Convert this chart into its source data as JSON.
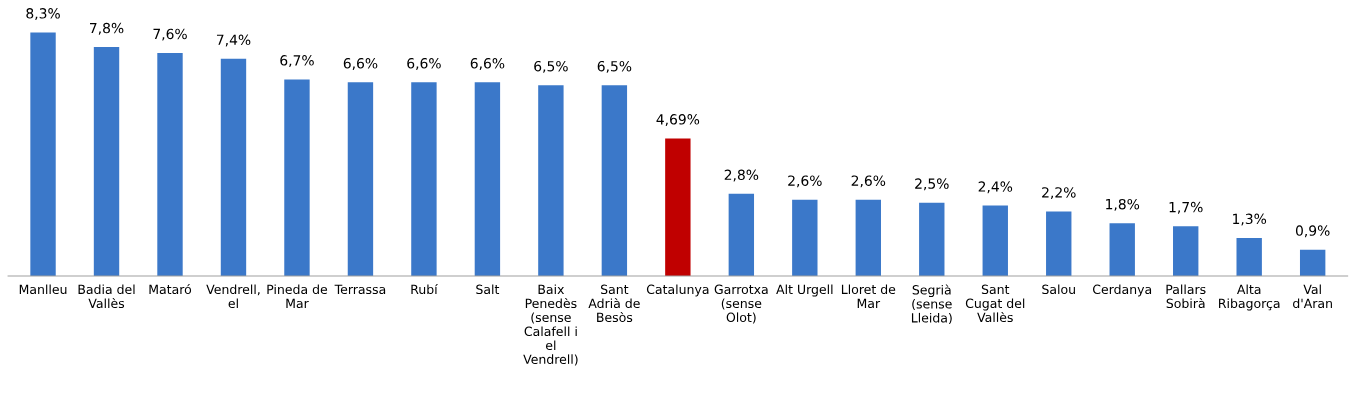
{
  "chart_data": {
    "type": "bar",
    "categories": [
      "Manlleu",
      "Badia del\nVallès",
      "Mataró",
      "Vendrell,\nel",
      "Pineda de\nMar",
      "Terrassa",
      "Rubí",
      "Salt",
      "Baix\nPenedès\n(sense\nCalafell i\nel\nVendrell)",
      "Sant\nAdrià de\nBesòs",
      "Catalunya",
      "Garrotxa\n(sense\nOlot)",
      "Alt Urgell",
      "Lloret de\nMar",
      "Segrià\n(sense\nLleida)",
      "Sant\nCugat del\nVallès",
      "Salou",
      "Cerdanya",
      "Pallars\nSobirà",
      "Alta\nRibagorça",
      "Val\nd'Aran"
    ],
    "values": [
      8.3,
      7.8,
      7.6,
      7.4,
      6.7,
      6.6,
      6.6,
      6.6,
      6.5,
      6.5,
      4.69,
      2.8,
      2.6,
      2.6,
      2.5,
      2.4,
      2.2,
      1.8,
      1.7,
      1.3,
      0.9
    ],
    "value_labels": [
      "8,3%",
      "7,8%",
      "7,6%",
      "7,4%",
      "6,7%",
      "6,6%",
      "6,6%",
      "6,6%",
      "6,5%",
      "6,5%",
      "4,69%",
      "2,8%",
      "2,6%",
      "2,6%",
      "2,5%",
      "2,4%",
      "2,2%",
      "1,8%",
      "1,7%",
      "1,3%",
      "0,9%"
    ],
    "colors": [
      "#3b78c9",
      "#3b78c9",
      "#3b78c9",
      "#3b78c9",
      "#3b78c9",
      "#3b78c9",
      "#3b78c9",
      "#3b78c9",
      "#3b78c9",
      "#3b78c9",
      "#c00000",
      "#3b78c9",
      "#3b78c9",
      "#3b78c9",
      "#3b78c9",
      "#3b78c9",
      "#3b78c9",
      "#3b78c9",
      "#3b78c9",
      "#3b78c9",
      "#3b78c9"
    ],
    "tick_labels": "x",
    "grid": false
  }
}
